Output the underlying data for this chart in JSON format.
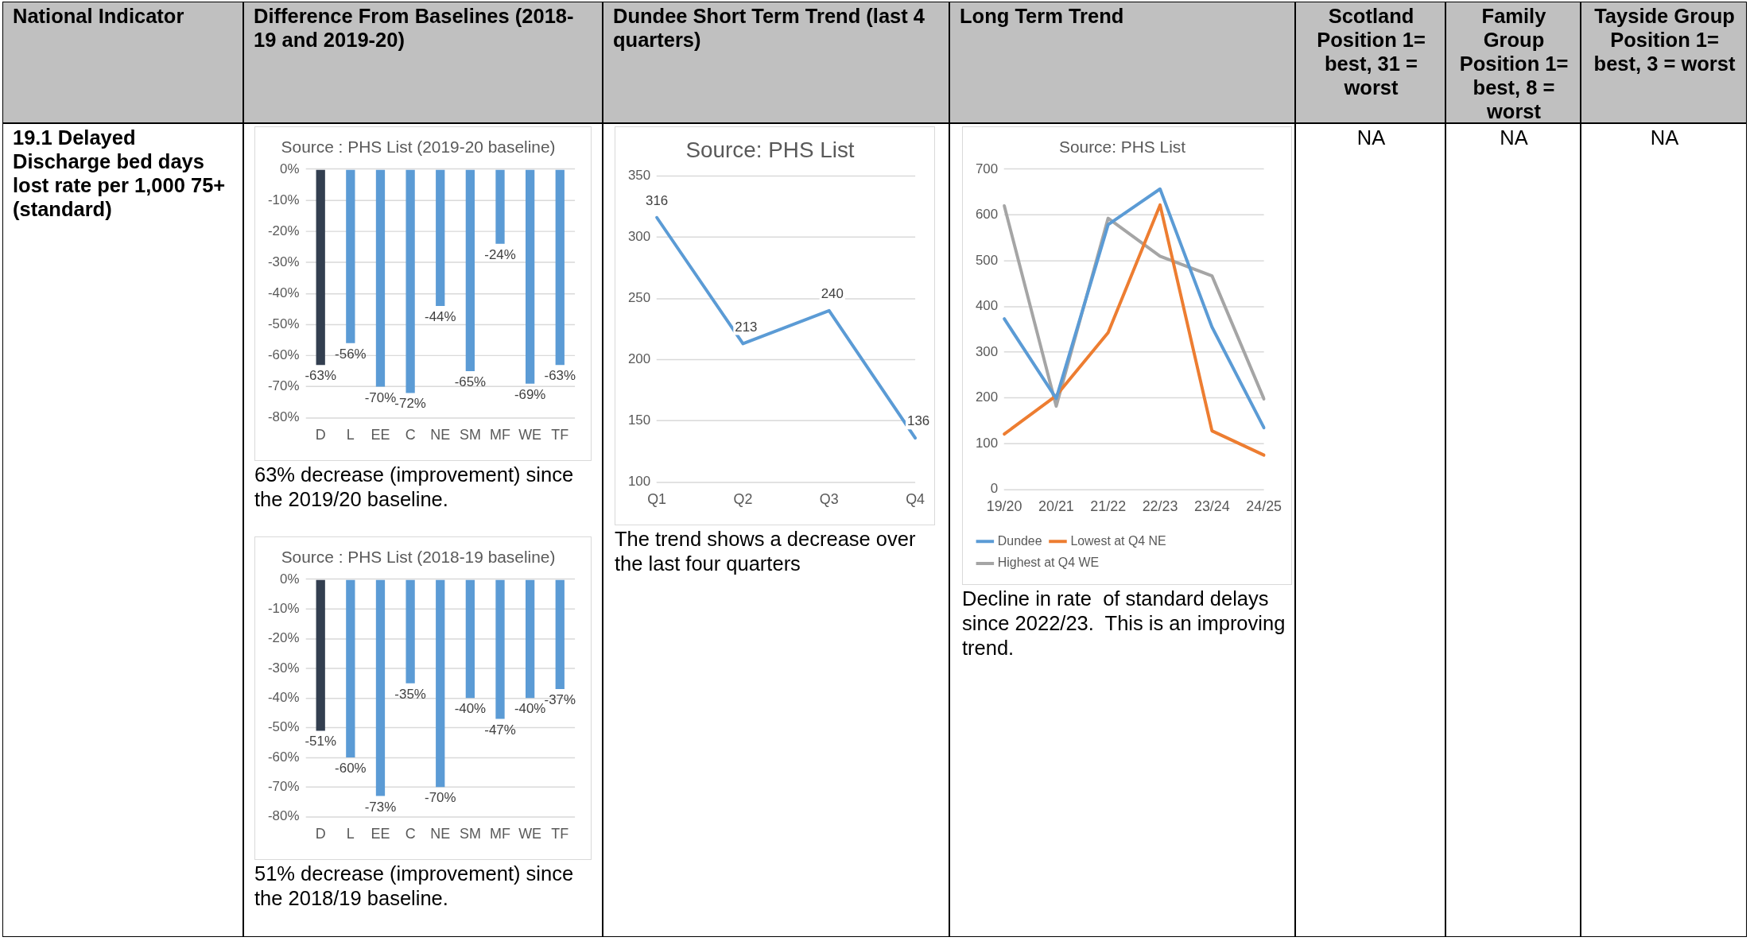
{
  "chart_data": [
    {
      "type": "other",
      "annotations": [
        "National Indicator",
        "Difference From Baselines (2018-19 and 2019-20)",
        "Dundee Short Term Trend (last 4 quarters)",
        "Long Term Trend",
        "Scotland Position 1= best, 31 = worst",
        "Family Group Position 1= best, 8 = worst",
        "Tayside Group Position 1= best, 3 = worst",
        "19.1 Delayed Discharge bed days lost rate per 1,000 75+ (standard)",
        "NA",
        "NA",
        "NA"
      ]
    },
    {
      "type": "bar",
      "title": "Source : PHS List (2019-20 baseline)",
      "categories": [
        "D",
        "L",
        "EE",
        "C",
        "NE",
        "SM",
        "MF",
        "WE",
        "TF"
      ],
      "values": [
        -63,
        -56,
        -70,
        -72,
        -44,
        -65,
        -24,
        -69,
        -63
      ],
      "value_labels": [
        "-63%",
        "-56%",
        "-70%",
        "-72%",
        "-44%",
        "-65%",
        "-24%",
        "-69%",
        "-63%"
      ],
      "colors": [
        "#333f50",
        "#5b9bd5",
        "#5b9bd5",
        "#5b9bd5",
        "#5b9bd5",
        "#5b9bd5",
        "#5b9bd5",
        "#5b9bd5",
        "#5b9bd5"
      ],
      "ylim": [
        -80,
        0
      ],
      "yticks": [
        {
          "value": -80,
          "label": "-80%"
        },
        {
          "value": -70,
          "label": "-70%"
        },
        {
          "value": -60,
          "label": "-60%"
        },
        {
          "value": -50,
          "label": "-50%"
        },
        {
          "value": -40,
          "label": "-40%"
        },
        {
          "value": -30,
          "label": "-30%"
        },
        {
          "value": -20,
          "label": "-20%"
        },
        {
          "value": -10,
          "label": "-10%"
        },
        {
          "value": 0,
          "label": "0%"
        }
      ],
      "grid": "y",
      "annotations": [
        "63% decrease (improvement) since the 2019/20 baseline."
      ]
    },
    {
      "type": "bar",
      "title": "Source : PHS List (2018-19 baseline)",
      "categories": [
        "D",
        "L",
        "EE",
        "C",
        "NE",
        "SM",
        "MF",
        "WE",
        "TF"
      ],
      "values": [
        -51,
        -60,
        -73,
        -35,
        -70,
        -40,
        -47,
        -40,
        -37
      ],
      "value_labels": [
        "-51%",
        "-60%",
        "-73%",
        "-35%",
        "-70%",
        "-40%",
        "-47%",
        "-40%",
        "-37%"
      ],
      "colors": [
        "#333f50",
        "#5b9bd5",
        "#5b9bd5",
        "#5b9bd5",
        "#5b9bd5",
        "#5b9bd5",
        "#5b9bd5",
        "#5b9bd5",
        "#5b9bd5"
      ],
      "ylim": [
        -80,
        0
      ],
      "yticks": [
        {
          "value": -80,
          "label": "-80%"
        },
        {
          "value": -70,
          "label": "-70%"
        },
        {
          "value": -60,
          "label": "-60%"
        },
        {
          "value": -50,
          "label": "-50%"
        },
        {
          "value": -40,
          "label": "-40%"
        },
        {
          "value": -30,
          "label": "-30%"
        },
        {
          "value": -20,
          "label": "-20%"
        },
        {
          "value": -10,
          "label": "-10%"
        },
        {
          "value": 0,
          "label": "0%"
        }
      ],
      "grid": "y",
      "annotations": [
        "51% decrease (improvement) since the 2018/19 baseline."
      ]
    },
    {
      "type": "line",
      "title": "Source: PHS List",
      "categories": [
        "Q1",
        "Q2",
        "Q3",
        "Q4"
      ],
      "values": [
        316,
        213,
        240,
        136
      ],
      "color": "#5b9bd5",
      "ylim": [
        100,
        350
      ],
      "yticks": [
        100,
        150,
        200,
        250,
        300,
        350
      ],
      "grid": "y",
      "data_labels": true,
      "marker": "none",
      "annotations": [
        "The trend shows a decrease over the last four quarters"
      ]
    },
    {
      "type": "line",
      "title": "Source: PHS List",
      "categories": [
        "19/20",
        "20/21",
        "21/22",
        "22/23",
        "23/24",
        "24/25"
      ],
      "series": [
        {
          "name": "Dundee",
          "color": "#5b9bd5",
          "values": [
            373,
            199,
            579,
            657,
            355,
            135
          ]
        },
        {
          "name": "Lowest at Q4 NE",
          "color": "#ed7d31",
          "values": [
            121,
            205,
            343,
            622,
            128,
            75
          ]
        },
        {
          "name": "Highest at Q4 WE",
          "color": "#a5a5a5",
          "values": [
            620,
            182,
            593,
            510,
            467,
            198
          ]
        }
      ],
      "ylim": [
        0,
        700
      ],
      "yticks": [
        0,
        100,
        200,
        300,
        400,
        500,
        600,
        700
      ],
      "grid": "y",
      "legend": "bottom",
      "marker": "none",
      "annotations": [
        "Decline in rate  of standard delays since 2022/23.  This is an improving trend."
      ]
    }
  ]
}
